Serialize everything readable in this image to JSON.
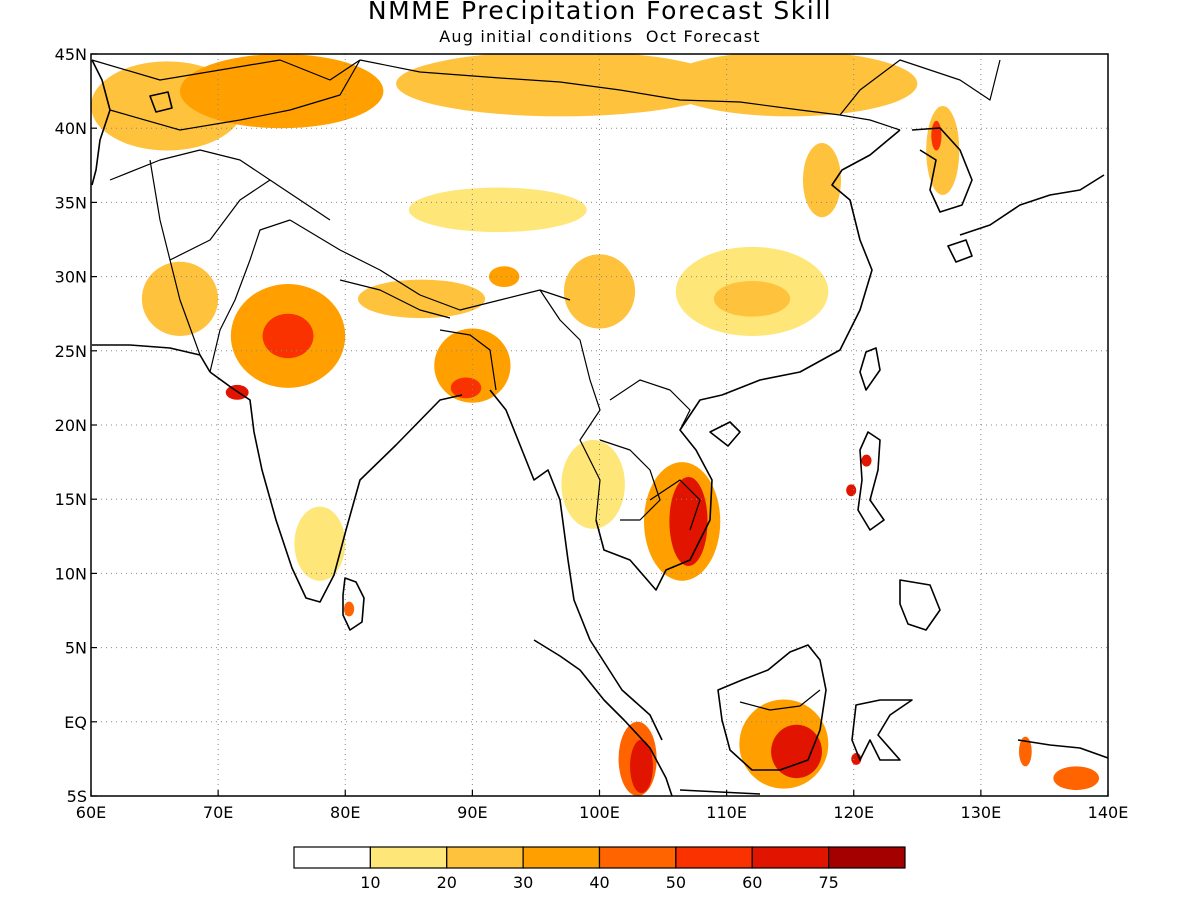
{
  "title": "NMME Precipitation Forecast Skill",
  "subtitle": "Aug initial conditions  Oct Forecast",
  "map": {
    "lon_range": [
      60,
      140
    ],
    "lat_range": [
      -5,
      45
    ],
    "lon_ticks": [
      {
        "value": 60,
        "label": "60E"
      },
      {
        "value": 70,
        "label": "70E"
      },
      {
        "value": 80,
        "label": "80E"
      },
      {
        "value": 90,
        "label": "90E"
      },
      {
        "value": 100,
        "label": "100E"
      },
      {
        "value": 110,
        "label": "110E"
      },
      {
        "value": 120,
        "label": "120E"
      },
      {
        "value": 130,
        "label": "130E"
      },
      {
        "value": 140,
        "label": "140E"
      }
    ],
    "lat_ticks": [
      {
        "value": 45,
        "label": "45N"
      },
      {
        "value": 40,
        "label": "40N"
      },
      {
        "value": 35,
        "label": "35N"
      },
      {
        "value": 30,
        "label": "30N"
      },
      {
        "value": 25,
        "label": "25N"
      },
      {
        "value": 20,
        "label": "20N"
      },
      {
        "value": 15,
        "label": "15N"
      },
      {
        "value": 10,
        "label": "10N"
      },
      {
        "value": 5,
        "label": "5N"
      },
      {
        "value": 0,
        "label": "EQ"
      },
      {
        "value": -5,
        "label": "5S"
      }
    ],
    "grid": "dotted",
    "skill_regions": [
      {
        "name": "mongolia-north",
        "lon": 97,
        "lat": 43,
        "rx": 13,
        "ry": 2.2,
        "level": 2
      },
      {
        "name": "kazakhstan-west",
        "lon": 66,
        "lat": 41.5,
        "rx": 6,
        "ry": 3,
        "level": 2
      },
      {
        "name": "kazakhstan-central",
        "lon": 75,
        "lat": 42.5,
        "rx": 8,
        "ry": 2.5,
        "level": 3
      },
      {
        "name": "mongolia-east",
        "lon": 115,
        "lat": 43,
        "rx": 10,
        "ry": 2.2,
        "level": 2
      },
      {
        "name": "tibet-band",
        "lon": 92,
        "lat": 34.5,
        "rx": 7,
        "ry": 1.5,
        "level": 1
      },
      {
        "name": "west-india",
        "lon": 75.5,
        "lat": 26,
        "rx": 4.5,
        "ry": 3.5,
        "level": 3
      },
      {
        "name": "west-india-core",
        "lon": 75.5,
        "lat": 26,
        "rx": 2,
        "ry": 1.5,
        "level": 5
      },
      {
        "name": "pakistan",
        "lon": 67,
        "lat": 28.5,
        "rx": 3,
        "ry": 2.5,
        "level": 2
      },
      {
        "name": "nepal-band",
        "lon": 86,
        "lat": 28.5,
        "rx": 5,
        "ry": 1.3,
        "level": 2
      },
      {
        "name": "bangladesh",
        "lon": 90,
        "lat": 24,
        "rx": 3,
        "ry": 2.5,
        "level": 3
      },
      {
        "name": "bangladesh-core",
        "lon": 89.5,
        "lat": 22.5,
        "rx": 1.2,
        "ry": 0.7,
        "level": 5
      },
      {
        "name": "yunnan",
        "lon": 100,
        "lat": 29,
        "rx": 2.8,
        "ry": 2.5,
        "level": 2
      },
      {
        "name": "tibet-spot",
        "lon": 92.5,
        "lat": 30,
        "rx": 1.2,
        "ry": 0.7,
        "level": 3
      },
      {
        "name": "south-china",
        "lon": 112,
        "lat": 29,
        "rx": 6,
        "ry": 3,
        "level": 1
      },
      {
        "name": "south-china-inner",
        "lon": 112,
        "lat": 28.5,
        "rx": 3,
        "ry": 1.2,
        "level": 2
      },
      {
        "name": "north-china",
        "lon": 117.5,
        "lat": 36.5,
        "rx": 1.5,
        "ry": 2.5,
        "level": 2
      },
      {
        "name": "korea",
        "lon": 127,
        "lat": 38.5,
        "rx": 1.3,
        "ry": 3,
        "level": 2
      },
      {
        "name": "korea-spot",
        "lon": 126.5,
        "lat": 39.5,
        "rx": 0.4,
        "ry": 1,
        "level": 5
      },
      {
        "name": "thailand",
        "lon": 99.5,
        "lat": 16,
        "rx": 2.5,
        "ry": 3,
        "level": 1
      },
      {
        "name": "vietnam-cambodia",
        "lon": 106.5,
        "lat": 13.5,
        "rx": 3,
        "ry": 4,
        "level": 3
      },
      {
        "name": "vietnam-core",
        "lon": 107,
        "lat": 13.5,
        "rx": 1.5,
        "ry": 3,
        "level": 6
      },
      {
        "name": "south-india",
        "lon": 78,
        "lat": 12,
        "rx": 2,
        "ry": 2.5,
        "level": 1
      },
      {
        "name": "sri-lanka",
        "lon": 80.3,
        "lat": 7.6,
        "rx": 0.4,
        "ry": 0.5,
        "level": 4
      },
      {
        "name": "borneo",
        "lon": 114.5,
        "lat": -1.5,
        "rx": 3.5,
        "ry": 3,
        "level": 3
      },
      {
        "name": "borneo-core",
        "lon": 115.5,
        "lat": -2,
        "rx": 2,
        "ry": 1.8,
        "level": 6
      },
      {
        "name": "sumatra",
        "lon": 103,
        "lat": -2.5,
        "rx": 1.5,
        "ry": 2.5,
        "level": 4
      },
      {
        "name": "sumatra-core",
        "lon": 103.3,
        "lat": -3,
        "rx": 0.9,
        "ry": 1.8,
        "level": 6
      },
      {
        "name": "luzon-1",
        "lon": 121,
        "lat": 17.6,
        "rx": 0.4,
        "ry": 0.4,
        "level": 6
      },
      {
        "name": "luzon-2",
        "lon": 119.8,
        "lat": 15.6,
        "rx": 0.4,
        "ry": 0.4,
        "level": 6
      },
      {
        "name": "sulawesi",
        "lon": 120.2,
        "lat": -2.5,
        "rx": 0.4,
        "ry": 0.4,
        "level": 6
      },
      {
        "name": "new-guinea-west",
        "lon": 133.5,
        "lat": -2,
        "rx": 0.5,
        "ry": 1,
        "level": 4
      },
      {
        "name": "new-guinea-south",
        "lon": 137.5,
        "lat": -3.8,
        "rx": 1.8,
        "ry": 0.8,
        "level": 4
      },
      {
        "name": "gujarat",
        "lon": 71.5,
        "lat": 22.2,
        "rx": 0.9,
        "ry": 0.5,
        "level": 6
      }
    ]
  },
  "colorbar": {
    "labels": [
      "10",
      "20",
      "30",
      "40",
      "50",
      "60",
      "75"
    ],
    "colors": [
      "#ffffff",
      "#ffe678",
      "#ffc23c",
      "#ffa000",
      "#ff6400",
      "#fa3200",
      "#e11400",
      "#a50000"
    ]
  }
}
